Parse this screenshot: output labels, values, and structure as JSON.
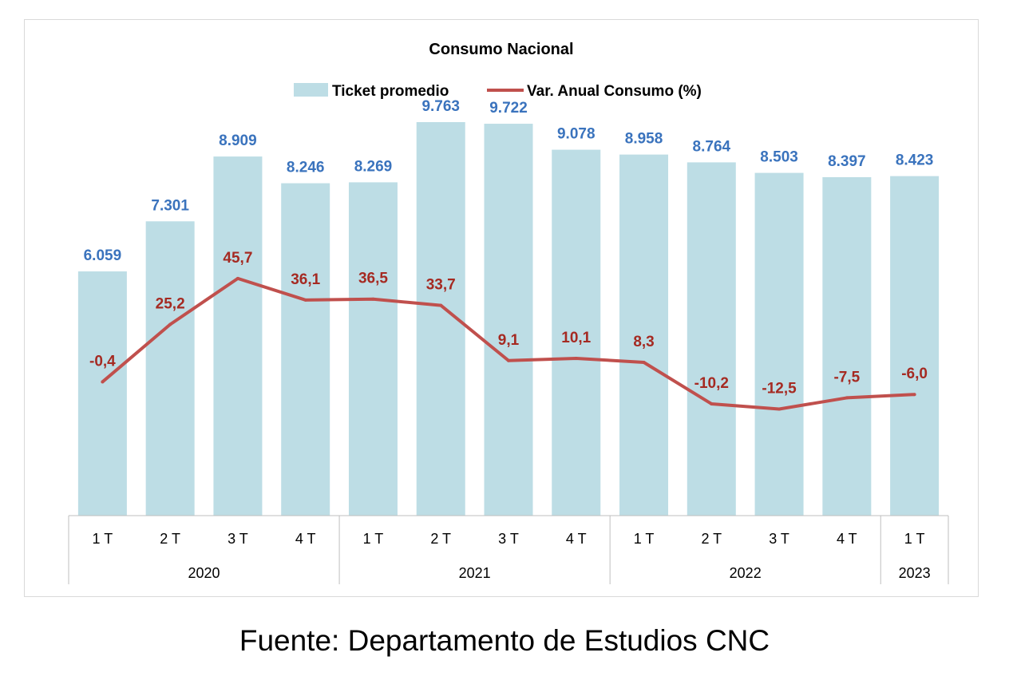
{
  "chart_data": {
    "type": "bar",
    "title": "Consumo Nacional",
    "legend_position": "top",
    "grid": false,
    "categories": [
      "1 T",
      "2 T",
      "3 T",
      "4 T",
      "1 T",
      "2 T",
      "3 T",
      "4 T",
      "1 T",
      "2 T",
      "3 T",
      "4 T",
      "1 T"
    ],
    "groups": [
      {
        "label": "2020",
        "count": 4
      },
      {
        "label": "2021",
        "count": 4
      },
      {
        "label": "2022",
        "count": 4
      },
      {
        "label": "2023",
        "count": 1
      }
    ],
    "series": [
      {
        "name": "Ticket promedio",
        "type": "bar",
        "color": "#bddde5",
        "label_color": "#3a73bd",
        "values": [
          6059,
          7301,
          8909,
          8246,
          8269,
          9763,
          9722,
          9078,
          8958,
          8764,
          8503,
          8397,
          8423
        ],
        "labels": [
          "6.059",
          "7.301",
          "8.909",
          "8.246",
          "8.269",
          "9.763",
          "9.722",
          "9.078",
          "8.958",
          "8.764",
          "8.503",
          "8.397",
          "8.423"
        ],
        "ylim": [
          0,
          12000
        ]
      },
      {
        "name": "Var. Anual Consumo (%)",
        "type": "line",
        "color": "#c0504d",
        "label_color": "#a52a22",
        "values": [
          -0.4,
          25.2,
          45.7,
          36.1,
          36.5,
          33.7,
          9.1,
          10.1,
          8.3,
          -10.2,
          -12.5,
          -7.5,
          -6.0
        ],
        "labels": [
          "-0,4",
          "25,2",
          "45,7",
          "36,1",
          "36,5",
          "33,7",
          "9,1",
          "10,1",
          "8,3",
          "-10,2",
          "-12,5",
          "-7,5",
          "-6,0"
        ],
        "ylim": [
          -60,
          120
        ]
      }
    ]
  },
  "footer": {
    "source": "Fuente: Departamento de Estudios CNC"
  }
}
